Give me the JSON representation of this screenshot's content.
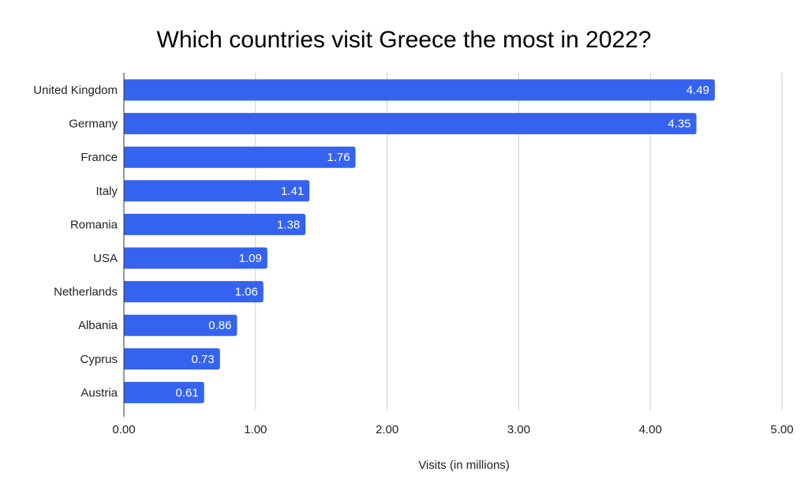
{
  "chart_data": {
    "type": "bar",
    "orientation": "horizontal",
    "title": "Which countries visit Greece the most in 2022?",
    "xlabel": "Visits (in millions)",
    "ylabel": "",
    "categories": [
      "United Kingdom",
      "Germany",
      "France",
      "Italy",
      "Romania",
      "USA",
      "Netherlands",
      "Albania",
      "Cyprus",
      "Austria"
    ],
    "values": [
      4.49,
      4.35,
      1.76,
      1.41,
      1.38,
      1.09,
      1.06,
      0.86,
      0.73,
      0.61
    ],
    "value_labels": [
      "4.49",
      "4.35",
      "1.76",
      "1.41",
      "1.38",
      "1.09",
      "1.06",
      "0.86",
      "0.73",
      "0.61"
    ],
    "xlim": [
      0,
      5
    ],
    "ticks": [
      0,
      1,
      2,
      3,
      4,
      5
    ],
    "tick_labels": [
      "0.00",
      "1.00",
      "2.00",
      "3.00",
      "4.00",
      "5.00"
    ],
    "grid": true,
    "legend": "none",
    "bar_color": "#3563ef"
  }
}
